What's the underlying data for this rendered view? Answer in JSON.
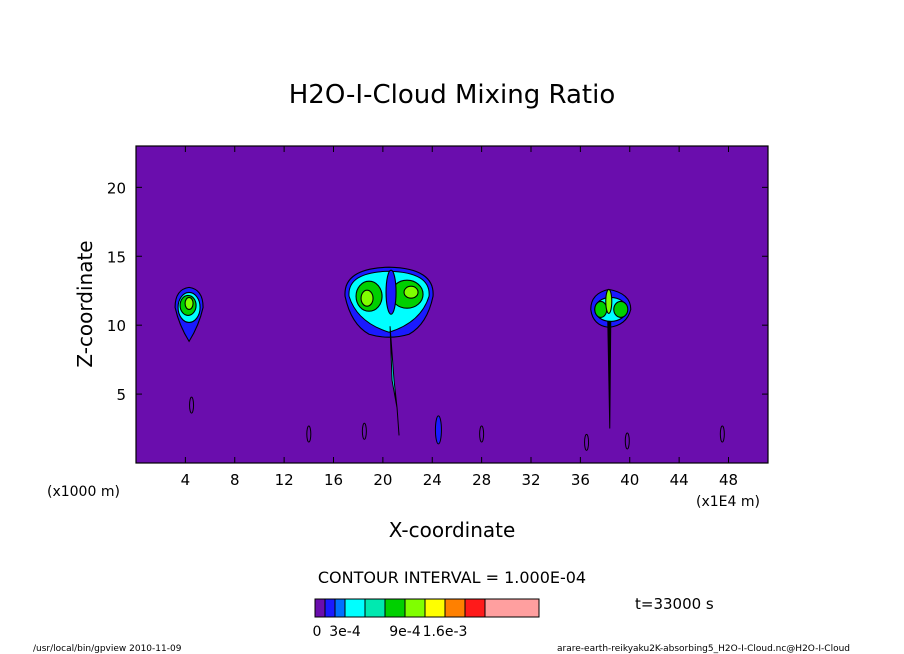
{
  "chart_data": {
    "type": "heatmap",
    "title": "H2O-I-Cloud Mixing Ratio",
    "xlabel": "X-coordinate",
    "ylabel": "Z-coordinate",
    "x_unit_note": "(x1E4 m)",
    "y_unit_note": "(x1000 m)",
    "xlim": [
      0,
      51.2
    ],
    "ylim": [
      0,
      23
    ],
    "x_ticks": [
      4,
      8,
      12,
      16,
      20,
      24,
      28,
      32,
      36,
      40,
      44,
      48
    ],
    "y_ticks": [
      5,
      10,
      15,
      20
    ],
    "contour_interval_text": "CONTOUR INTERVAL = 1.000E-04",
    "time_text": "t=33000 s",
    "colorbar": {
      "labels": [
        "0",
        "3e-4",
        "9e-4",
        "1.6e-3"
      ],
      "label_levels": [
        0,
        3,
        6,
        8
      ],
      "colors": [
        "#6a0dad",
        "#1a1aff",
        "#0070ff",
        "#00ffff",
        "#00e9b0",
        "#00d000",
        "#80ff00",
        "#ffff00",
        "#ff8000",
        "#ff1a1a",
        "#ff9f9f"
      ]
    },
    "background_color": "#6a0dad",
    "features": [
      {
        "name": "left-cloud",
        "x": 4.3,
        "z": 11.0,
        "peak": 0.0009
      },
      {
        "name": "center-cloud",
        "x": 20.5,
        "z": 12.1,
        "peak": 0.0009
      },
      {
        "name": "right-cloud",
        "x": 38.3,
        "z": 11.0,
        "peak": 0.0009
      }
    ]
  },
  "footer": {
    "left": "/usr/local/bin/gpview  2010-11-09",
    "right": "arare-earth-reikyaku2K-absorbing5_H2O-I-Cloud.nc@H2O-I-Cloud"
  }
}
